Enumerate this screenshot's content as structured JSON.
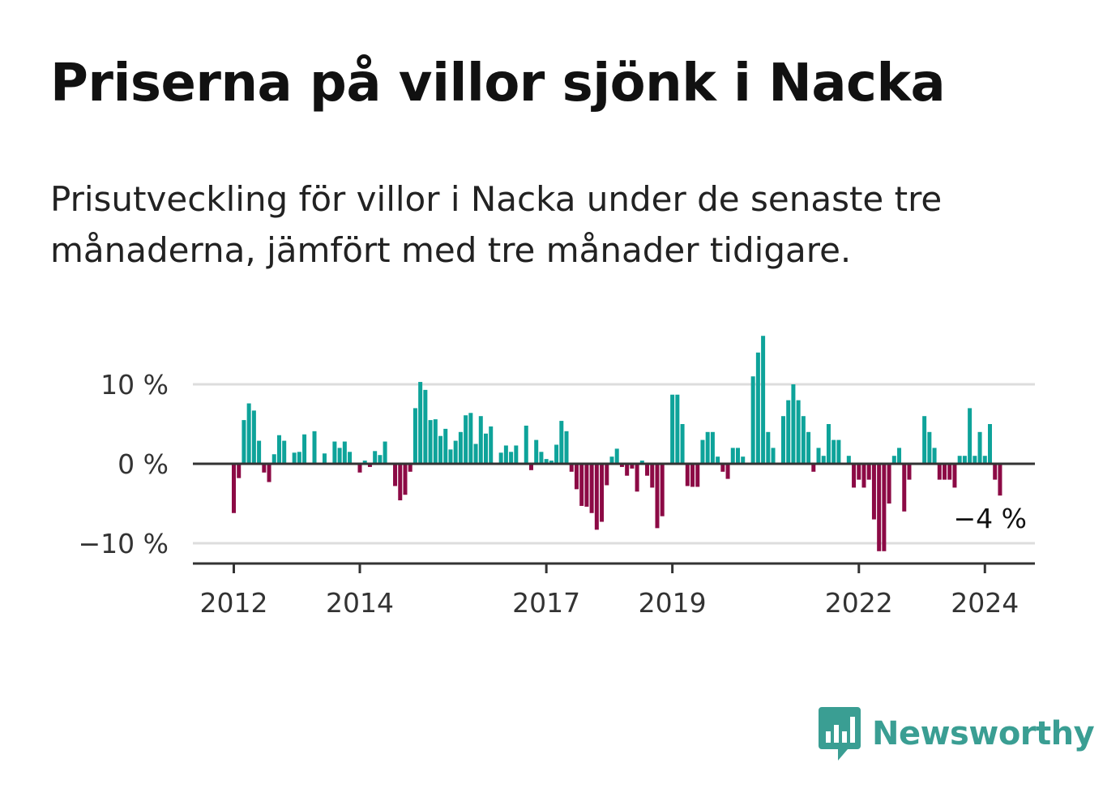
{
  "title": "Priserna på villor sjönk i Nacka",
  "subtitle": "Prisutveckling för villor i Nacka under de senaste tre månaderna, jämfört med tre månader tidigare.",
  "colors": {
    "positive": "#0ea39a",
    "negative": "#8c0a45",
    "grid": "#dddddd",
    "axis": "#333333",
    "brand": "#3a9e93"
  },
  "brand": {
    "name": "Newsworthy",
    "icon": "bar-chart-bubble-icon"
  },
  "chart_data": {
    "type": "bar",
    "title": "Priserna på villor sjönk i Nacka",
    "xlabel": "",
    "ylabel": "",
    "ylim": [
      -13,
      17
    ],
    "grid": true,
    "x_start": {
      "year": 2012,
      "month": 1
    },
    "frequency": "monthly",
    "x_ticks": [
      {
        "label": "2012",
        "index": 0
      },
      {
        "label": "2014",
        "index": 25
      },
      {
        "label": "2017",
        "index": 62
      },
      {
        "label": "2019",
        "index": 87
      },
      {
        "label": "2022",
        "index": 124
      },
      {
        "label": "2024",
        "index": 149
      }
    ],
    "y_ticks": [
      {
        "value": 10,
        "label": "10 %"
      },
      {
        "value": 0,
        "label": "0 %"
      },
      {
        "value": -10,
        "label": "−10 %"
      }
    ],
    "values": [
      -6.2,
      -1.8,
      5.5,
      7.6,
      6.7,
      2.9,
      -1.1,
      -2.3,
      1.2,
      3.6,
      2.9,
      0,
      1.4,
      1.5,
      3.7,
      0,
      4.1,
      0,
      1.3,
      0,
      2.8,
      2.0,
      2.8,
      1.5,
      0,
      -1.1,
      0.4,
      -0.4,
      1.6,
      1.1,
      2.8,
      0,
      -2.8,
      -4.6,
      -3.9,
      -1.0,
      7.0,
      10.3,
      9.3,
      5.5,
      5.6,
      3.5,
      4.4,
      1.8,
      2.9,
      4.0,
      6.1,
      6.4,
      2.5,
      6.0,
      3.8,
      4.7,
      0,
      1.4,
      2.3,
      1.5,
      2.3,
      0,
      4.8,
      -0.8,
      3.0,
      1.5,
      0.6,
      0.4,
      2.4,
      5.4,
      4.1,
      -1.0,
      -3.2,
      -5.3,
      -5.4,
      -6.2,
      -8.3,
      -7.3,
      -2.7,
      0.9,
      1.9,
      -0.4,
      -1.5,
      -0.6,
      -3.5,
      0.4,
      -1.5,
      -3.0,
      -8.1,
      -6.6,
      0,
      8.7,
      8.7,
      5.0,
      -2.8,
      -2.9,
      -2.9,
      3.0,
      4.0,
      4.0,
      0.9,
      -1.0,
      -1.9,
      2.0,
      2.0,
      0.9,
      0,
      11.0,
      14.0,
      16.1,
      4.0,
      2.0,
      0,
      6.0,
      8.0,
      10.0,
      8.0,
      6.0,
      4.0,
      -1.0,
      2.0,
      1.0,
      5.0,
      3.0,
      3.0,
      0,
      1.0,
      -3.0,
      -2.0,
      -3.0,
      -2.0,
      -7.0,
      -11.0,
      -11.0,
      -5.0,
      1.0,
      2.0,
      -6.0,
      -2.0,
      0,
      0,
      6.0,
      4.0,
      2.0,
      -2.0,
      -2.0,
      -2.0,
      -3.0,
      1.0,
      1.0,
      7.0,
      1.0,
      4.0,
      1.0,
      5.0,
      -2.0,
      -4.0
    ],
    "annotations": [
      {
        "label": "−4 %",
        "index": 159
      }
    ]
  }
}
